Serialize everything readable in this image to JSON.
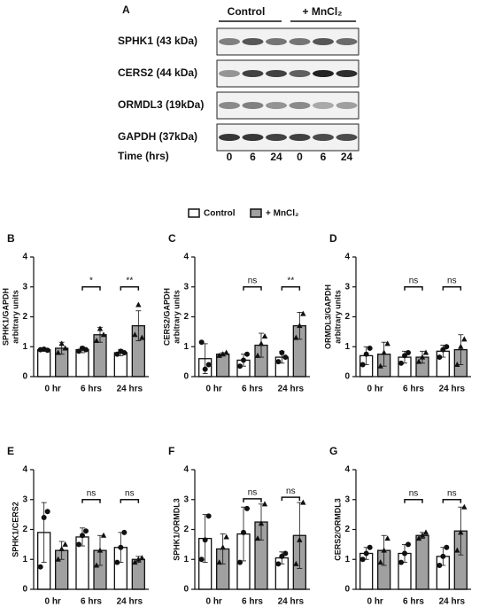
{
  "blot": {
    "panel": "A",
    "groups": [
      "Control",
      "+ MnCl₂"
    ],
    "rows": [
      "SPHK1 (43 kDa)",
      "CERS2 (44 kDa)",
      "ORMDL3 (19kDa)",
      "GAPDH (37kDa)"
    ],
    "time_label": "Time (hrs)",
    "times": [
      "0",
      "6",
      "24",
      "0",
      "6",
      "24"
    ]
  },
  "legend": [
    {
      "name": "Control",
      "color": "#ffffff"
    },
    {
      "name": "+ MnCl₂",
      "color": "#a0a0a0"
    }
  ],
  "chart_data": [
    {
      "type": "bar",
      "label": "B",
      "ylabel": [
        "SPHK1/GAPDH",
        "arbitrary units"
      ],
      "categories": [
        "0 hr",
        "6 hrs",
        "24 hrs"
      ],
      "ylim": [
        0,
        4
      ],
      "yticks": [
        0,
        1,
        2,
        3,
        4
      ],
      "significance": [
        null,
        "*",
        "**"
      ],
      "series": [
        {
          "color": "#ffffff",
          "values": [
            0.9,
            0.9,
            0.8
          ],
          "errors": [
            0.05,
            0.1,
            0.1
          ],
          "points": [
            [
              0.9,
              0.92,
              0.88
            ],
            [
              0.85,
              0.95,
              0.9
            ],
            [
              0.75,
              0.85,
              0.8
            ]
          ]
        },
        {
          "color": "#a0a0a0",
          "values": [
            0.95,
            1.4,
            1.7
          ],
          "errors": [
            0.2,
            0.25,
            0.5
          ],
          "points": [
            [
              0.8,
              1.1,
              0.95
            ],
            [
              1.2,
              1.6,
              1.4
            ],
            [
              1.4,
              2.4,
              1.3
            ]
          ]
        }
      ]
    },
    {
      "type": "bar",
      "label": "C",
      "ylabel": [
        "CERS2/GAPDH",
        "arbitrary units"
      ],
      "categories": [
        "0 hr",
        "6 hrs",
        "24 hrs"
      ],
      "ylim": [
        0,
        4
      ],
      "yticks": [
        0,
        1,
        2,
        3,
        4
      ],
      "significance": [
        null,
        "ns",
        "**"
      ],
      "series": [
        {
          "color": "#ffffff",
          "values": [
            0.6,
            0.55,
            0.65
          ],
          "errors": [
            0.5,
            0.2,
            0.2
          ],
          "points": [
            [
              1.15,
              0.25,
              0.4
            ],
            [
              0.35,
              0.55,
              0.75
            ],
            [
              0.5,
              0.8,
              0.65
            ]
          ]
        },
        {
          "color": "#a0a0a0",
          "values": [
            0.75,
            1.05,
            1.7
          ],
          "errors": [
            0.05,
            0.4,
            0.45
          ],
          "points": [
            [
              0.7,
              0.75,
              0.8
            ],
            [
              0.7,
              1.1,
              1.35
            ],
            [
              1.3,
              1.7,
              2.1
            ]
          ]
        }
      ]
    },
    {
      "type": "bar",
      "label": "D",
      "ylabel": [
        "ORMDL3/GAPDH",
        "arbitrary units"
      ],
      "categories": [
        "0 hr",
        "6 hrs",
        "24 hrs"
      ],
      "ylim": [
        0,
        4
      ],
      "yticks": [
        0,
        1,
        2,
        3,
        4
      ],
      "significance": [
        null,
        "ns",
        "ns"
      ],
      "series": [
        {
          "color": "#ffffff",
          "values": [
            0.7,
            0.65,
            0.85
          ],
          "errors": [
            0.3,
            0.2,
            0.2
          ],
          "points": [
            [
              0.4,
              0.75,
              0.95
            ],
            [
              0.45,
              0.7,
              0.8
            ],
            [
              0.65,
              0.9,
              1.0
            ]
          ]
        },
        {
          "color": "#a0a0a0",
          "values": [
            0.75,
            0.65,
            0.9
          ],
          "errors": [
            0.4,
            0.2,
            0.5
          ],
          "points": [
            [
              0.35,
              0.8,
              1.1
            ],
            [
              0.5,
              0.65,
              0.8
            ],
            [
              0.4,
              1.0,
              1.25
            ]
          ]
        }
      ]
    },
    {
      "type": "bar",
      "label": "E",
      "ylabel": [
        "SPHK1/CERS2"
      ],
      "categories": [
        "0 hr",
        "6 hrs",
        "24 hrs"
      ],
      "ylim": [
        0,
        4
      ],
      "yticks": [
        0,
        1,
        2,
        3,
        4
      ],
      "significance": [
        null,
        "ns",
        "ns"
      ],
      "series": [
        {
          "color": "#ffffff",
          "values": [
            1.9,
            1.75,
            1.4
          ],
          "errors": [
            1.0,
            0.3,
            0.5
          ],
          "points": [
            [
              0.75,
              2.4,
              2.6
            ],
            [
              1.5,
              1.8,
              1.95
            ],
            [
              0.9,
              1.4,
              1.9
            ]
          ]
        },
        {
          "color": "#a0a0a0",
          "values": [
            1.3,
            1.3,
            1.0
          ],
          "errors": [
            0.3,
            0.5,
            0.1
          ],
          "points": [
            [
              1.0,
              1.35,
              1.5
            ],
            [
              0.8,
              1.3,
              1.8
            ],
            [
              0.9,
              1.0,
              1.05
            ]
          ]
        }
      ]
    },
    {
      "type": "bar",
      "label": "F",
      "ylabel": [
        "SPHK1/ORMDL3"
      ],
      "categories": [
        "0 hr",
        "6 hrs",
        "24 hrs"
      ],
      "ylim": [
        0,
        4
      ],
      "yticks": [
        0,
        1,
        2,
        3,
        4
      ],
      "significance": [
        null,
        "ns",
        "ns"
      ],
      "series": [
        {
          "color": "#ffffff",
          "values": [
            1.7,
            1.85,
            1.05
          ],
          "errors": [
            0.8,
            0.9,
            0.2
          ],
          "points": [
            [
              1.0,
              1.65,
              2.45
            ],
            [
              0.9,
              1.9,
              2.7
            ],
            [
              0.85,
              1.1,
              1.2
            ]
          ]
        },
        {
          "color": "#a0a0a0",
          "values": [
            1.35,
            2.25,
            1.8
          ],
          "errors": [
            0.5,
            0.6,
            1.1
          ],
          "points": [
            [
              0.9,
              1.4,
              1.75
            ],
            [
              1.7,
              2.2,
              2.85
            ],
            [
              0.85,
              1.65,
              2.9
            ]
          ]
        }
      ]
    },
    {
      "type": "bar",
      "label": "G",
      "ylabel": [
        "CERS2/ORMDL3"
      ],
      "categories": [
        "0 hr",
        "6 hrs",
        "24 hrs"
      ],
      "ylim": [
        0,
        4
      ],
      "yticks": [
        0,
        1,
        2,
        3,
        4
      ],
      "significance": [
        null,
        "ns",
        "ns"
      ],
      "series": [
        {
          "color": "#ffffff",
          "values": [
            1.2,
            1.2,
            1.1
          ],
          "errors": [
            0.2,
            0.3,
            0.3
          ],
          "points": [
            [
              1.0,
              1.2,
              1.4
            ],
            [
              0.9,
              1.2,
              1.5
            ],
            [
              0.8,
              1.1,
              1.4
            ]
          ]
        },
        {
          "color": "#a0a0a0",
          "values": [
            1.3,
            1.8,
            1.95
          ],
          "errors": [
            0.5,
            0.1,
            0.8
          ],
          "points": [
            [
              0.9,
              1.3,
              1.7
            ],
            [
              1.7,
              1.8,
              1.9
            ],
            [
              1.3,
              1.9,
              2.75
            ]
          ]
        }
      ]
    }
  ]
}
